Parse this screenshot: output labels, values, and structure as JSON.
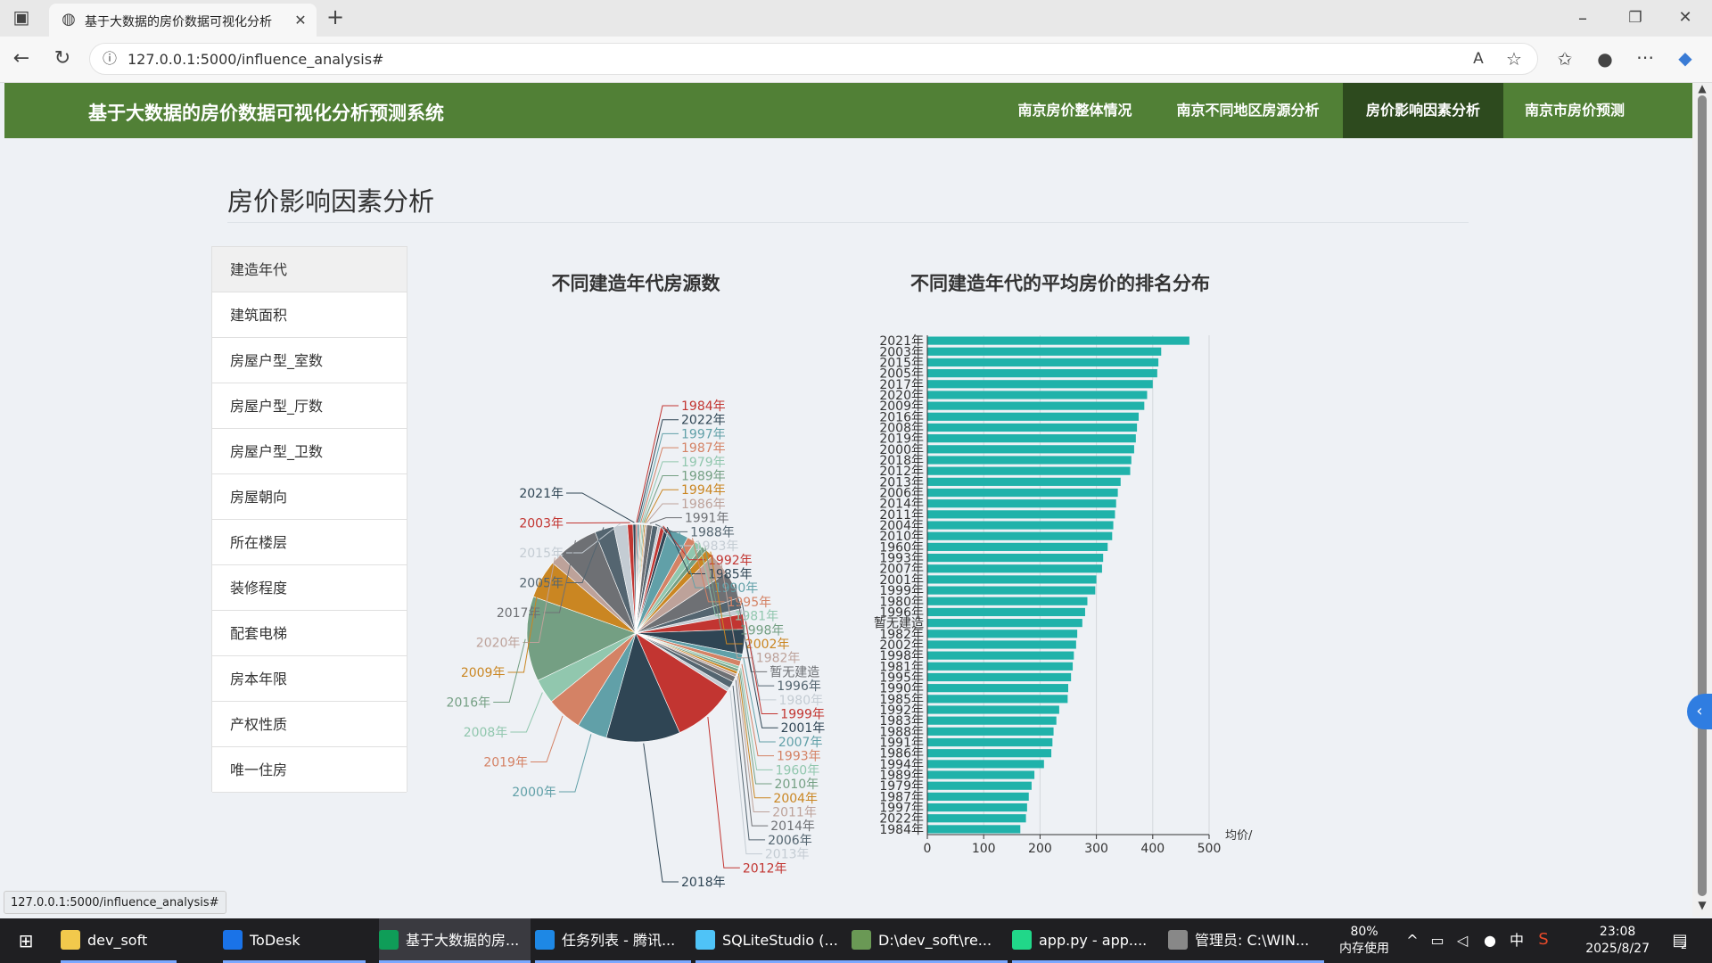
{
  "browser": {
    "tab_title": "基于大数据的房价数据可视化分析",
    "url": "127.0.0.1:5000/influence_analysis#",
    "status_url": "127.0.0.1:5000/influence_analysis#"
  },
  "app": {
    "brand": "基于大数据的房价数据可视化分析预测系统",
    "nav": [
      "南京房价整体情况",
      "南京不同地区房源分析",
      "房价影响因素分析",
      "南京市房价预测"
    ],
    "active_nav": 2,
    "page_title": "房价影响因素分析",
    "sidebar": [
      "建造年代",
      "建筑面积",
      "房屋户型_室数",
      "房屋户型_厅数",
      "房屋户型_卫数",
      "房屋朝向",
      "所在楼层",
      "装修程度",
      "配套电梯",
      "房本年限",
      "产权性质",
      "唯一住房"
    ],
    "active_sidebar": 0
  },
  "chart_data": [
    {
      "type": "pie",
      "title": "不同建造年代房源数",
      "labels": [
        "1984年",
        "2022年",
        "1997年",
        "1987年",
        "1979年",
        "1989年",
        "1994年",
        "1986年",
        "1991年",
        "1988年",
        "1983年",
        "1992年",
        "1985年",
        "1990年",
        "1995年",
        "1981年",
        "1998年",
        "2002年",
        "1982年",
        "暂无建造",
        "1996年",
        "1980年",
        "1999年",
        "2001年",
        "2007年",
        "1993年",
        "1960年",
        "2010年",
        "2004年",
        "2011年",
        "2014年",
        "2006年",
        "2013年",
        "2012年",
        "2018年",
        "2000年",
        "2019年",
        "2008年",
        "2016年",
        "2009年",
        "2020年",
        "2017年",
        "2005年",
        "2015年",
        "2003年",
        "2021年"
      ],
      "values": [
        1,
        1,
        1,
        1,
        1,
        1,
        1,
        1,
        4,
        4,
        2,
        3,
        3,
        15,
        6,
        6,
        4,
        6,
        16,
        20,
        8,
        4,
        11,
        18,
        5,
        4,
        2,
        2,
        2,
        2,
        4,
        5,
        3,
        46,
        54,
        22,
        26,
        18,
        62,
        28,
        8,
        30,
        14,
        10,
        4,
        2
      ],
      "label_colors": [
        "#c23531",
        "#2f4554",
        "#61a0a8",
        "#d48265",
        "#91c7ae",
        "#749f83",
        "#ca8622",
        "#bda29a",
        "#6e7074",
        "#546570",
        "#c4ccd3",
        "#c23531",
        "#2f4554",
        "#61a0a8",
        "#d48265",
        "#91c7ae",
        "#749f83",
        "#ca8622",
        "#bda29a",
        "#6e7074",
        "#546570",
        "#c4ccd3",
        "#c23531",
        "#2f4554",
        "#61a0a8",
        "#d48265",
        "#91c7ae",
        "#749f83",
        "#ca8622",
        "#bda29a",
        "#6e7074",
        "#546570",
        "#c4ccd3",
        "#c23531",
        "#2f4554",
        "#61a0a8",
        "#d48265",
        "#91c7ae",
        "#749f83",
        "#ca8622",
        "#bda29a",
        "#6e7074",
        "#546570",
        "#c4ccd3",
        "#c23531",
        "#2f4554"
      ]
    },
    {
      "type": "bar",
      "orientation": "horizontal",
      "title": "不同建造年代的平均房价的排名分布",
      "xlabel": "均价/",
      "xlim": [
        0,
        500
      ],
      "xticks": [
        0,
        100,
        200,
        300,
        400,
        500
      ],
      "categories": [
        "2021年",
        "2003年",
        "2015年",
        "2005年",
        "2017年",
        "2020年",
        "2009年",
        "2016年",
        "2008年",
        "2019年",
        "2000年",
        "2018年",
        "2012年",
        "2013年",
        "2006年",
        "2014年",
        "2011年",
        "2004年",
        "2010年",
        "1960年",
        "1993年",
        "2007年",
        "2001年",
        "1999年",
        "1980年",
        "1996年",
        "暂无建造",
        "1982年",
        "2002年",
        "1998年",
        "1981年",
        "1995年",
        "1990年",
        "1985年",
        "1992年",
        "1983年",
        "1988年",
        "1991年",
        "1986年",
        "1994年",
        "1989年",
        "1979年",
        "1987年",
        "1997年",
        "2022年",
        "1984年"
      ],
      "values": [
        465,
        415,
        410,
        408,
        400,
        390,
        385,
        375,
        372,
        370,
        367,
        362,
        360,
        343,
        338,
        335,
        333,
        330,
        328,
        320,
        312,
        310,
        300,
        298,
        284,
        280,
        275,
        266,
        264,
        260,
        258,
        255,
        250,
        249,
        234,
        229,
        224,
        222,
        220,
        207,
        190,
        185,
        180,
        177,
        175,
        165
      ],
      "bar_color": "#20b2aa"
    }
  ],
  "taskbar": {
    "items": [
      "dev_soft",
      "ToDesk",
      "基于大数据的房...",
      "任务列表 - 腾讯...",
      "SQLiteStudio (...",
      "D:\\dev_soft\\re...",
      "app.py - app....",
      "管理员: C:\\WIN..."
    ],
    "mem_pct": "80%",
    "mem_label": "内存使用",
    "time": "23:08",
    "date": "2025/8/27",
    "ime": "中",
    "notif": "2"
  }
}
